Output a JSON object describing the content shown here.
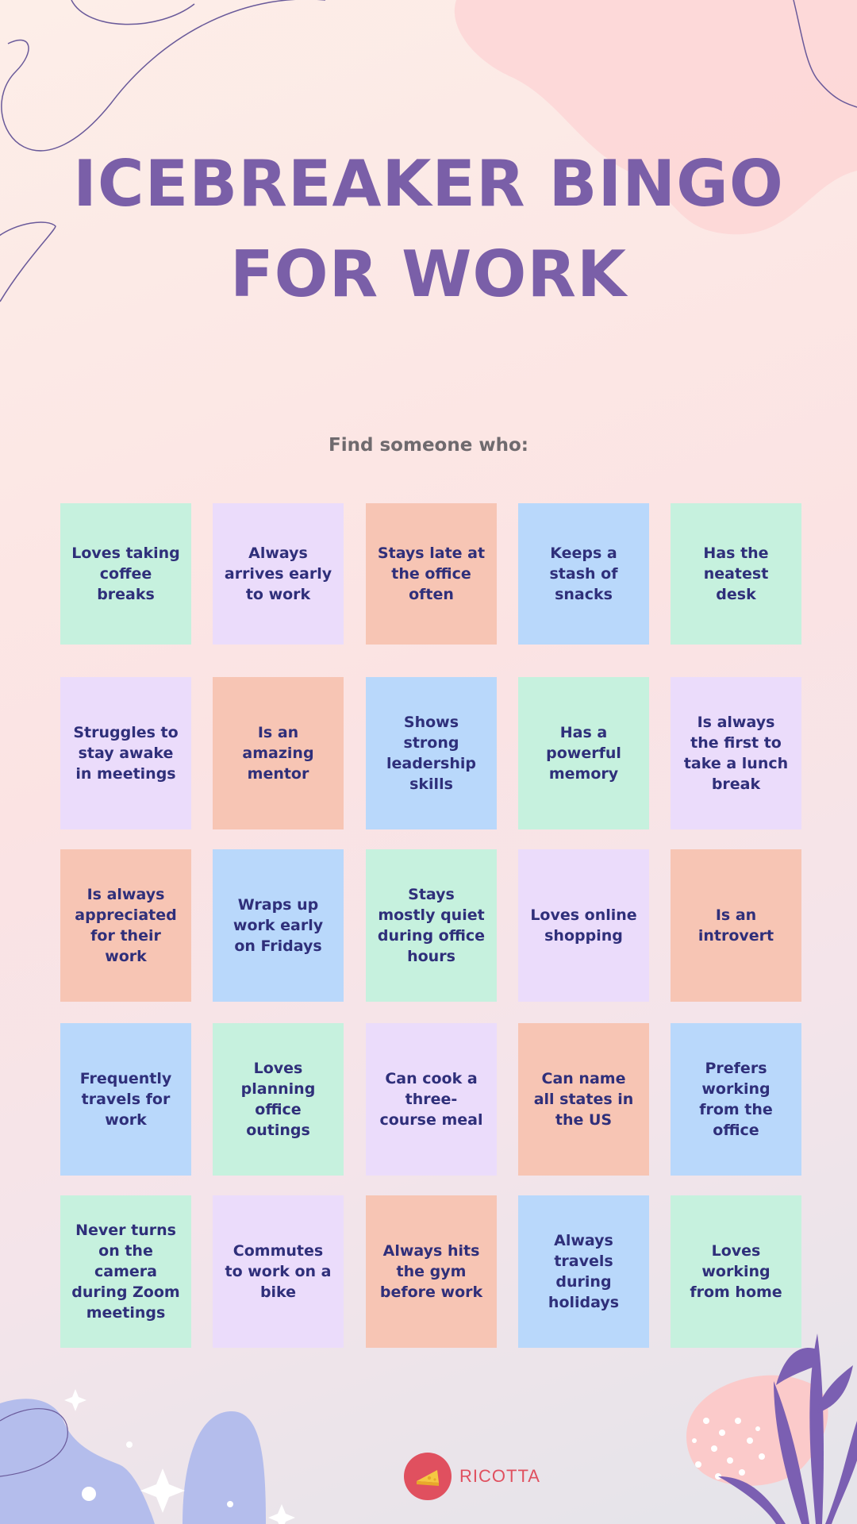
{
  "title": {
    "line1": "ICEBREAKER BINGO",
    "line2": "FOR WORK"
  },
  "subtitle": "Find someone who:",
  "colors": {
    "green": "#c6f1de",
    "purple": "#ebdcfb",
    "peach": "#f7c5b4",
    "blue": "#b9d8fb",
    "title": "#7a5fa8",
    "card_text": "#2f2f7a",
    "brand": "#e0505f"
  },
  "bingo": [
    [
      {
        "text": "Loves taking coffee breaks",
        "color": "green"
      },
      {
        "text": "Always arrives early to work",
        "color": "purple"
      },
      {
        "text": "Stays late at the office often",
        "color": "peach"
      },
      {
        "text": "Keeps a stash of snacks",
        "color": "blue"
      },
      {
        "text": "Has the neatest desk",
        "color": "green"
      }
    ],
    [
      {
        "text": "Struggles to stay awake in meetings",
        "color": "purple"
      },
      {
        "text": "Is an amazing mentor",
        "color": "peach"
      },
      {
        "text": "Shows strong leadership skills",
        "color": "blue"
      },
      {
        "text": "Has a powerful memory",
        "color": "green"
      },
      {
        "text": "Is always the first to take a lunch break",
        "color": "purple"
      }
    ],
    [
      {
        "text": "Is always appreciated for their work",
        "color": "peach"
      },
      {
        "text": "Wraps up work early on Fridays",
        "color": "blue"
      },
      {
        "text": "Stays mostly quiet during office hours",
        "color": "green"
      },
      {
        "text": "Loves online shopping",
        "color": "purple"
      },
      {
        "text": "Is an introvert",
        "color": "peach"
      }
    ],
    [
      {
        "text": "Frequently travels for work",
        "color": "blue"
      },
      {
        "text": "Loves planning office outings",
        "color": "green"
      },
      {
        "text": "Can cook a three-course meal",
        "color": "purple"
      },
      {
        "text": "Can name all states in the US",
        "color": "peach"
      },
      {
        "text": "Prefers working from the office",
        "color": "blue"
      }
    ],
    [
      {
        "text": "Never turns on the camera during Zoom meetings",
        "color": "green"
      },
      {
        "text": "Commutes to work on a bike",
        "color": "purple"
      },
      {
        "text": "Always hits the gym before work",
        "color": "peach"
      },
      {
        "text": "Always travels during holidays",
        "color": "blue"
      },
      {
        "text": "Loves working from home",
        "color": "green"
      }
    ]
  ],
  "brand": {
    "name": "RICOTTA",
    "icon": "cheese-icon"
  }
}
